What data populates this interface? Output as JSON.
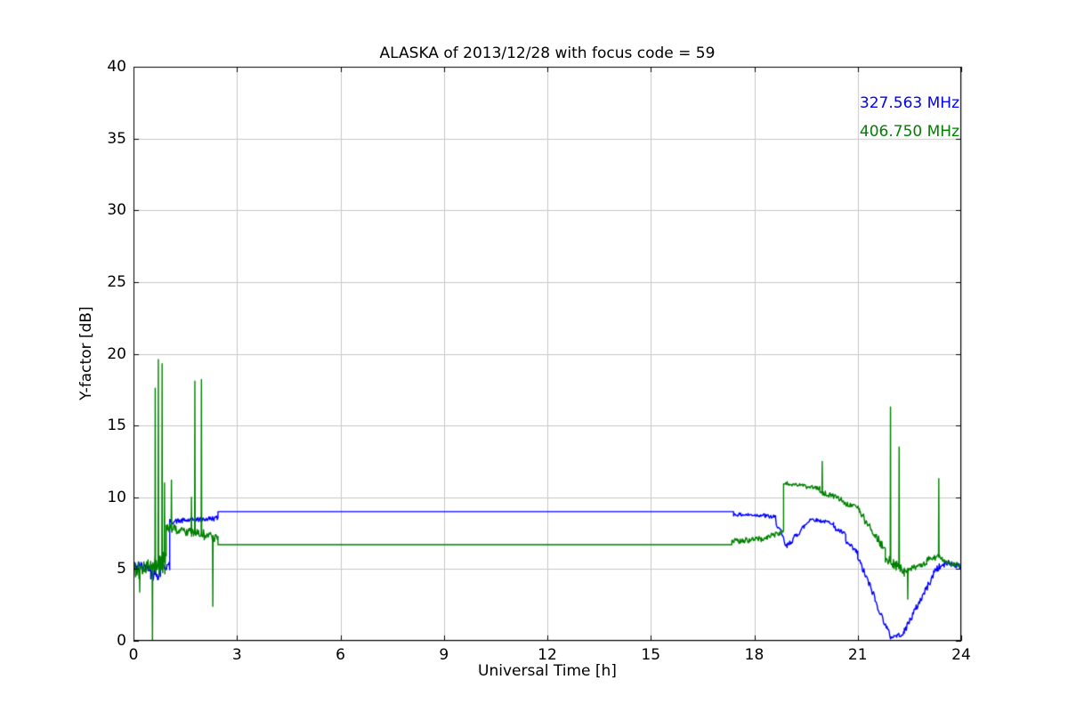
{
  "chart_data": {
    "type": "line",
    "title": "ALASKA of 2013/12/28 with focus code = 59",
    "xlabel": "Universal Time [h]",
    "ylabel": "Y-factor [dB]",
    "xlim": [
      0,
      24
    ],
    "ylim": [
      0,
      40
    ],
    "xticks": [
      0,
      3,
      6,
      9,
      12,
      15,
      18,
      21,
      24
    ],
    "yticks": [
      0,
      5,
      10,
      15,
      20,
      25,
      30,
      35,
      40
    ],
    "grid": true,
    "grid_color": "#c8c8c8",
    "axis_color": "#000000",
    "legend_position": "upper right",
    "series": [
      {
        "name": "327.563 MHz",
        "color": "#0000ff",
        "segments": [
          [
            0.0,
            0.5,
            5.2,
            5.2,
            0.35
          ],
          [
            0.5,
            0.78,
            4.6,
            4.7,
            0.45
          ],
          [
            0.78,
            1.05,
            5.2,
            5.2,
            0.3
          ],
          [
            1.05,
            2.45,
            8.3,
            8.55,
            0.18
          ],
          [
            2.45,
            17.4,
            9.0,
            9.0,
            0.0
          ],
          [
            17.4,
            18.3,
            8.8,
            8.75,
            0.12
          ],
          [
            18.3,
            18.62,
            8.7,
            8.6,
            0.15
          ],
          [
            18.62,
            18.95,
            8.4,
            6.4,
            0.25
          ],
          [
            18.95,
            19.6,
            6.6,
            8.4,
            0.2
          ],
          [
            19.6,
            20.3,
            8.5,
            8.2,
            0.12
          ],
          [
            20.3,
            20.65,
            7.9,
            7.4,
            0.15
          ],
          [
            20.65,
            21.0,
            6.9,
            6.1,
            0.2
          ],
          [
            21.0,
            21.5,
            5.8,
            3.0,
            0.25
          ],
          [
            21.5,
            21.95,
            2.8,
            0.3,
            0.2
          ],
          [
            21.95,
            22.35,
            0.25,
            0.5,
            0.15
          ],
          [
            22.35,
            23.2,
            0.7,
            4.6,
            0.25
          ],
          [
            23.2,
            23.65,
            4.9,
            5.5,
            0.25
          ],
          [
            23.65,
            24.0,
            5.4,
            5.2,
            0.2
          ]
        ],
        "spikes": []
      },
      {
        "name": "406.750 MHz",
        "color": "#008000",
        "segments": [
          [
            0.0,
            0.5,
            5.0,
            5.0,
            0.7
          ],
          [
            0.5,
            0.95,
            5.3,
            5.5,
            0.9
          ],
          [
            0.95,
            1.25,
            7.8,
            7.8,
            0.35
          ],
          [
            1.25,
            1.62,
            7.7,
            7.6,
            0.3
          ],
          [
            1.62,
            2.05,
            7.5,
            7.4,
            0.35
          ],
          [
            2.05,
            2.45,
            7.3,
            7.2,
            0.3
          ],
          [
            2.45,
            17.35,
            6.7,
            6.7,
            0.0
          ],
          [
            17.35,
            18.2,
            6.9,
            7.1,
            0.2
          ],
          [
            18.2,
            18.85,
            7.1,
            7.6,
            0.18
          ],
          [
            18.85,
            19.9,
            11.0,
            10.6,
            0.15
          ],
          [
            19.9,
            20.6,
            10.4,
            9.8,
            0.18
          ],
          [
            20.6,
            21.05,
            9.6,
            9.2,
            0.18
          ],
          [
            21.05,
            21.8,
            9.0,
            6.3,
            0.3
          ],
          [
            21.8,
            22.35,
            5.8,
            4.8,
            0.35
          ],
          [
            22.35,
            23.0,
            4.9,
            5.4,
            0.2
          ],
          [
            23.0,
            23.45,
            5.6,
            5.9,
            0.25
          ],
          [
            23.45,
            24.0,
            5.6,
            5.2,
            0.2
          ]
        ],
        "spikes": [
          [
            0.18,
            3.4
          ],
          [
            0.55,
            0.1
          ],
          [
            0.63,
            17.6
          ],
          [
            0.72,
            19.6
          ],
          [
            0.83,
            19.3
          ],
          [
            0.9,
            11.0
          ],
          [
            1.1,
            11.2
          ],
          [
            1.68,
            10.0
          ],
          [
            1.78,
            18.1
          ],
          [
            1.97,
            18.2
          ],
          [
            2.3,
            2.4
          ],
          [
            19.97,
            12.5
          ],
          [
            21.95,
            16.3
          ],
          [
            22.2,
            13.5
          ],
          [
            22.45,
            2.9
          ],
          [
            23.35,
            11.3
          ]
        ]
      }
    ]
  }
}
